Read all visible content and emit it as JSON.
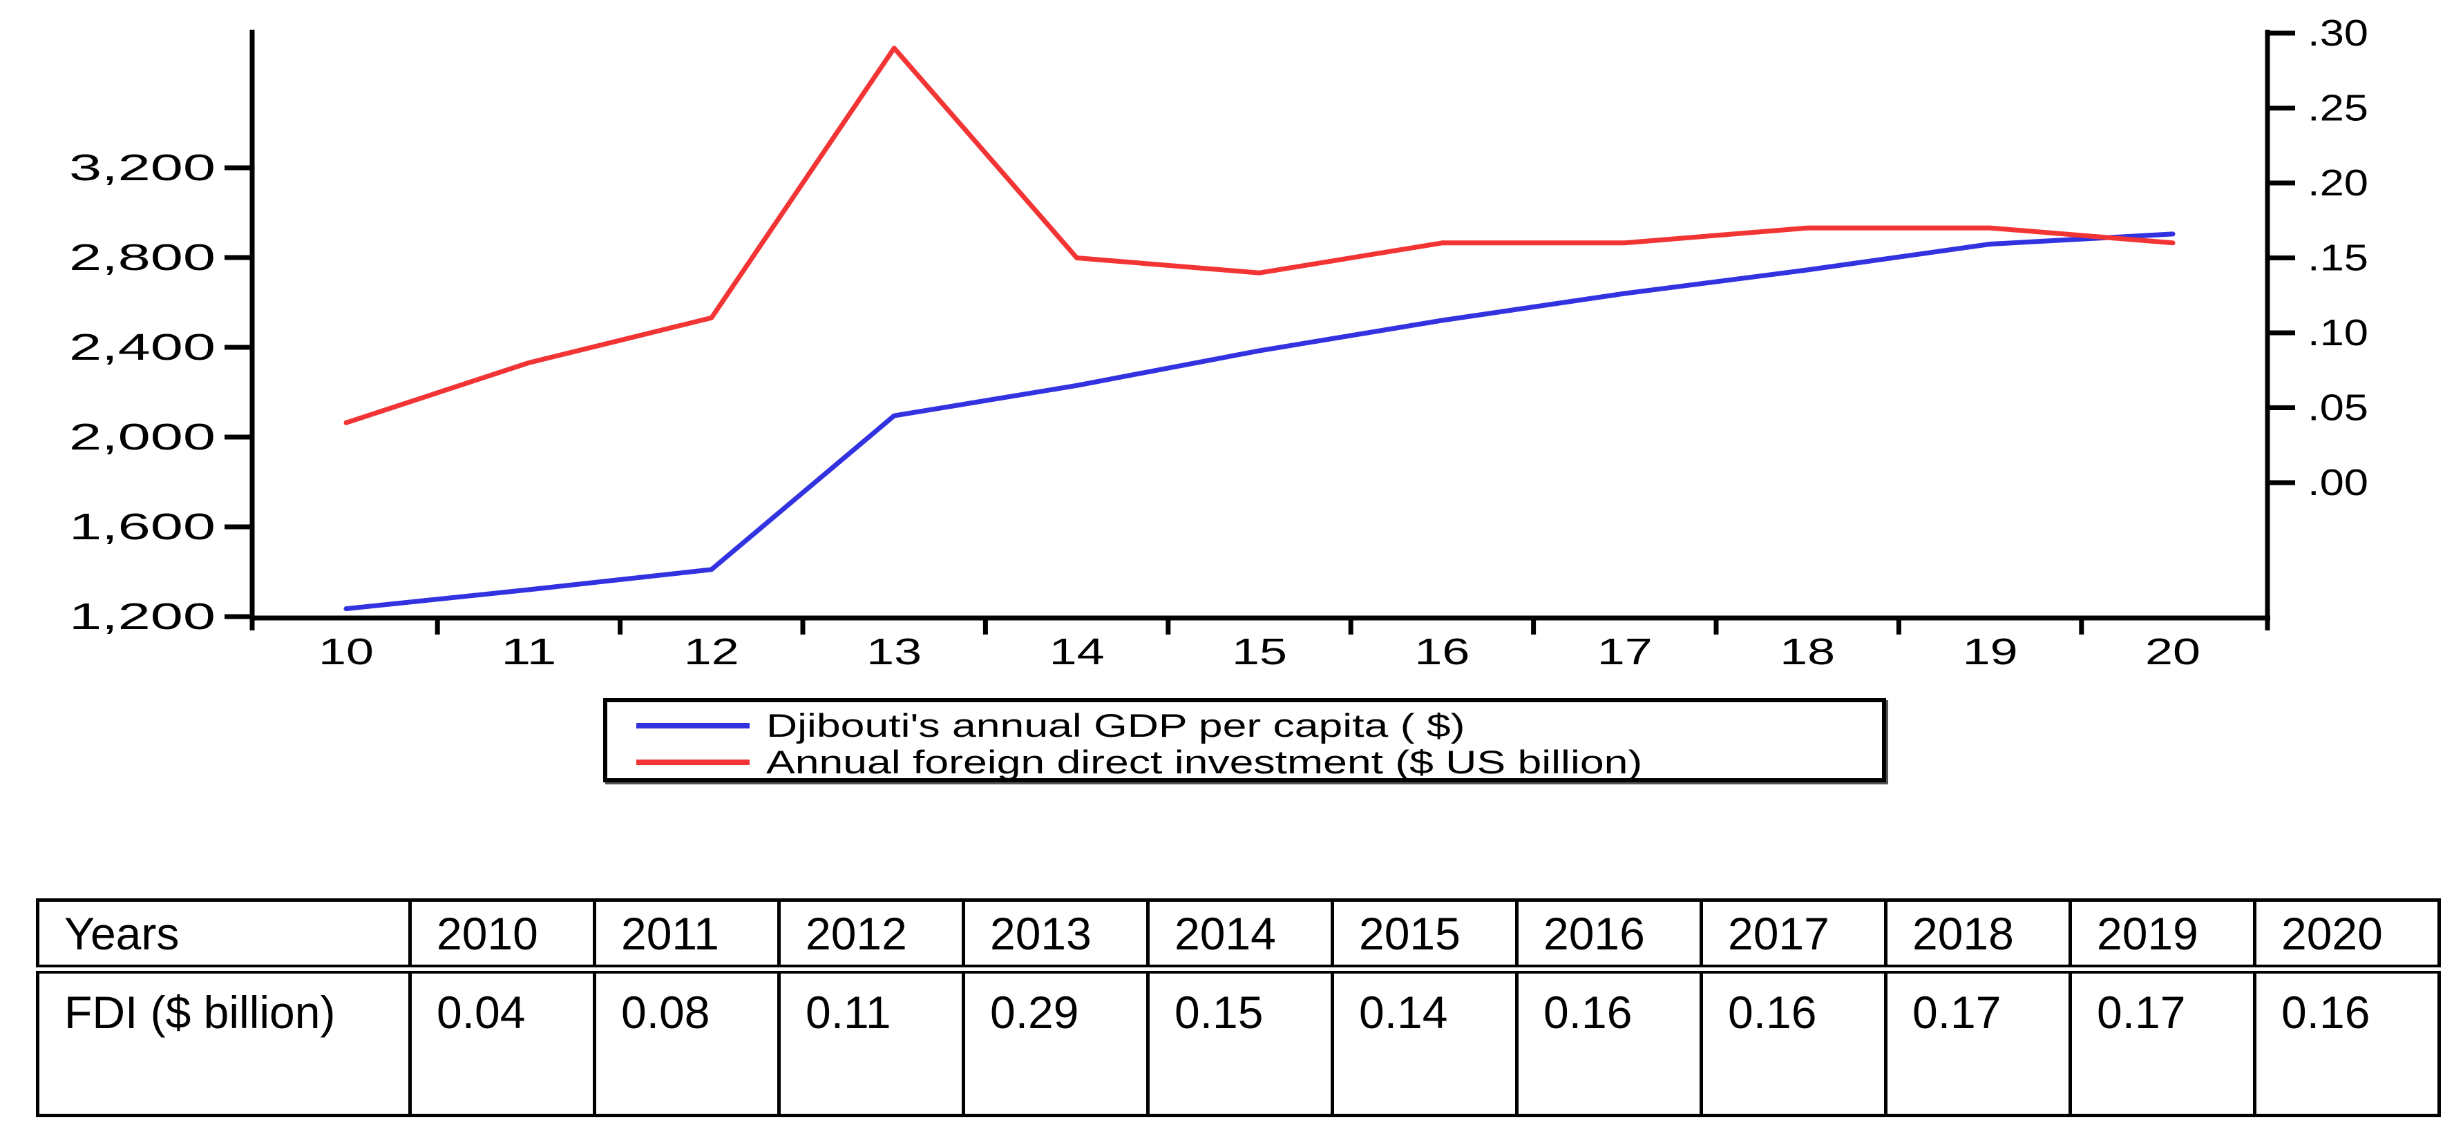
{
  "chart_data": {
    "type": "line",
    "title": "",
    "x": [
      2010,
      2011,
      2012,
      2013,
      2014,
      2015,
      2016,
      2017,
      2018,
      2019,
      2020
    ],
    "x_tick_labels": [
      "10",
      "11",
      "12",
      "13",
      "14",
      "15",
      "16",
      "17",
      "18",
      "19",
      "20"
    ],
    "series": [
      {
        "name": "Djibouti's annual GDP per capita ( $)",
        "axis": "left",
        "color": "#3232e0",
        "values": [
          1235,
          1320,
          1410,
          2095,
          2230,
          2385,
          2520,
          2640,
          2745,
          2860,
          2905
        ]
      },
      {
        "name": "Annual foreign direct investment ($ US billion)",
        "axis": "right",
        "color": "#f23434",
        "values": [
          0.04,
          0.08,
          0.11,
          0.29,
          0.15,
          0.14,
          0.16,
          0.16,
          0.17,
          0.17,
          0.16
        ]
      }
    ],
    "left_axis": {
      "tick_values": [
        1200,
        1600,
        2000,
        2400,
        2800,
        3200
      ],
      "tick_labels": [
        "1,200",
        "1,600",
        "2,000",
        "2,400",
        "2,800",
        "3,200"
      ],
      "range": [
        1200,
        3880
      ]
    },
    "right_axis": {
      "tick_values": [
        0.0,
        0.05,
        0.1,
        0.15,
        0.2,
        0.25,
        0.3
      ],
      "tick_labels": [
        ".00",
        ".05",
        ".10",
        ".15",
        ".20",
        ".25",
        ".30"
      ],
      "range": [
        -0.09,
        0.31
      ]
    },
    "grid": false,
    "legend_position": "bottom"
  },
  "legend": {
    "items": [
      {
        "label": "Djibouti's annual GDP per capita ( $)",
        "color": "#3232e0"
      },
      {
        "label": "Annual foreign direct investment ($ US billion)",
        "color": "#f23434"
      }
    ]
  },
  "table": {
    "rows": [
      [
        "Years",
        "2010",
        "2011",
        "2012",
        "2013",
        "2014",
        "2015",
        "2016",
        "2017",
        "2018",
        "2019",
        "2020"
      ],
      [
        "FDI ($ billion)",
        "0.04",
        "0.08",
        "0.11",
        "0.29",
        "0.15",
        "0.14",
        "0.16",
        "0.16",
        "0.17",
        "0.17",
        "0.16"
      ]
    ]
  }
}
